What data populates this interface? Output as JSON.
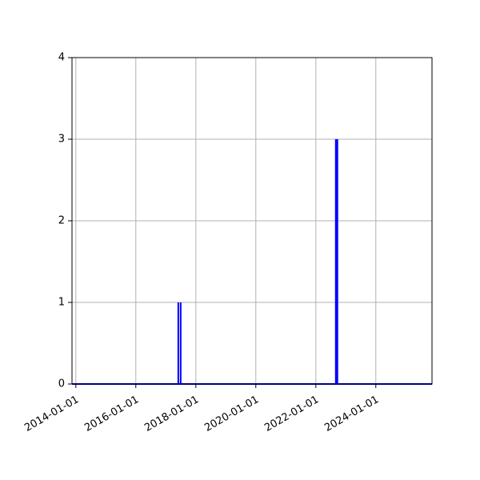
{
  "chart_data": {
    "type": "line",
    "title": "",
    "xlabel": "",
    "ylabel": "",
    "x_type": "date",
    "xlim": [
      "2013-11-15",
      "2025-11-15"
    ],
    "ylim": [
      0,
      4
    ],
    "x_ticks": [
      "2014-01-01",
      "2016-01-01",
      "2018-01-01",
      "2020-01-01",
      "2022-01-01",
      "2024-01-01"
    ],
    "y_ticks": [
      0,
      1,
      2,
      3,
      4
    ],
    "grid": true,
    "legend": "none",
    "series": [
      {
        "color": "#0000ff",
        "x": [
          "2013-11-15",
          "2017-06-01",
          "2017-06-01",
          "2017-06-01",
          "2017-06-30",
          "2017-06-30",
          "2017-06-30",
          "2022-09-01",
          "2022-09-01",
          "2022-09-01",
          "2022-09-20",
          "2022-09-20",
          "2022-09-20",
          "2025-11-15"
        ],
        "y": [
          0,
          0,
          1,
          0,
          0,
          1,
          0,
          0,
          3,
          0,
          0,
          3,
          0,
          0
        ]
      }
    ]
  }
}
